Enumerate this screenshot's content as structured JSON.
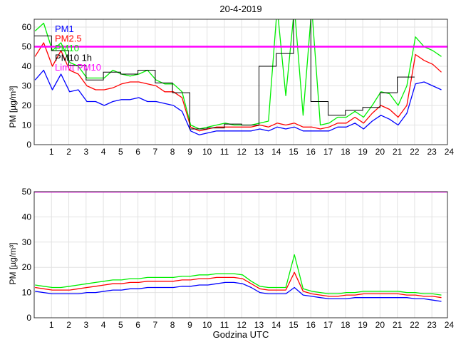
{
  "chart_data": [
    {
      "type": "line",
      "title": "20-4-2019",
      "xlabel": "",
      "ylabel": "PM [µg/m³]",
      "xlim": [
        0,
        23.9
      ],
      "ylim": [
        0,
        64
      ],
      "xticks": [
        1,
        2,
        3,
        4,
        5,
        6,
        7,
        8,
        9,
        10,
        11,
        12,
        13,
        14,
        15,
        16,
        17,
        18,
        19,
        20,
        21,
        22,
        23,
        24
      ],
      "yticks": [
        0,
        10,
        20,
        30,
        40,
        50,
        60
      ],
      "grid": true,
      "legend_placement": "top-left",
      "x_step_hours": 0.5,
      "series": [
        {
          "name": "PM1",
          "color": "#0000ff",
          "values": [
            33,
            38,
            28,
            36,
            27,
            28,
            22,
            22,
            20,
            22,
            23,
            23,
            24,
            22,
            22,
            21,
            20,
            17,
            7,
            5,
            6,
            7,
            7,
            7,
            7,
            7,
            8,
            7,
            9,
            8,
            9,
            7,
            7,
            7,
            7,
            9,
            9,
            11,
            8,
            12,
            15,
            13,
            10,
            16,
            31,
            32,
            30,
            28
          ]
        },
        {
          "name": "PM2.5",
          "color": "#ff0000",
          "values": [
            45,
            52,
            40,
            48,
            38,
            36,
            30,
            28,
            28,
            29,
            31,
            32,
            32,
            31,
            30,
            27,
            27,
            24,
            9,
            7,
            8,
            9,
            9,
            9,
            9,
            9,
            10,
            9,
            11,
            10,
            11,
            9,
            9,
            8,
            9,
            11,
            11,
            14,
            11,
            16,
            20,
            18,
            14,
            20,
            46,
            43,
            41,
            37
          ]
        },
        {
          "name": "PM10",
          "color": "#00ee00",
          "values": [
            58,
            62,
            48,
            52,
            42,
            40,
            34,
            34,
            34,
            38,
            36,
            35,
            36,
            38,
            33,
            31,
            31,
            27,
            10,
            8,
            9,
            10,
            11,
            10,
            10,
            10,
            11,
            12,
            70,
            25,
            70,
            15,
            70,
            10,
            11,
            14,
            14,
            17,
            14,
            20,
            27,
            26,
            20,
            30,
            55,
            50,
            48,
            45
          ]
        },
        {
          "name": "PM10 1h",
          "color": "#000000",
          "step": true,
          "values": [
            55.5,
            48,
            40.5,
            33,
            37,
            36,
            38,
            31.5,
            26.5,
            8,
            8.5,
            10.5,
            10,
            40,
            46.5,
            80,
            22,
            15,
            17.5,
            19,
            26.5,
            34.5
          ]
        },
        {
          "name": "Limit PM10",
          "color": "#ff00ff",
          "constant": 50
        }
      ]
    },
    {
      "type": "line",
      "title": "",
      "xlabel": "Godzina UTC",
      "ylabel": "PM [µg/m³]",
      "xlim": [
        0,
        23.9
      ],
      "ylim": [
        0,
        50
      ],
      "xticks": [
        1,
        2,
        3,
        4,
        5,
        6,
        7,
        8,
        9,
        10,
        11,
        12,
        13,
        14,
        15,
        16,
        17,
        18,
        19,
        20,
        21,
        22,
        23,
        24
      ],
      "yticks": [
        0,
        10,
        20,
        30,
        40,
        50
      ],
      "grid": true,
      "x_step_hours": 0.5,
      "series": [
        {
          "name": "PM1",
          "color": "#0000ff",
          "values": [
            10.5,
            10,
            9.5,
            9.5,
            9.5,
            9.5,
            10,
            10,
            10.5,
            11,
            11,
            11.5,
            11.5,
            12,
            12,
            12,
            12,
            12.5,
            12.5,
            13,
            13,
            13.5,
            14,
            14,
            13.5,
            12,
            10,
            9.5,
            9.5,
            9.5,
            12,
            9,
            8.5,
            8,
            7.5,
            7.5,
            7.5,
            8,
            8,
            8,
            8,
            8,
            8,
            8,
            7.5,
            7.5,
            7,
            6.5
          ]
        },
        {
          "name": "PM2.5",
          "color": "#ff0000",
          "values": [
            12,
            11.5,
            11,
            11,
            11,
            11.5,
            12,
            12.5,
            13,
            13.5,
            13.5,
            14,
            14,
            14.5,
            14.5,
            14.5,
            14.5,
            15,
            15,
            15.5,
            15.5,
            16,
            16,
            16,
            15.5,
            13.5,
            11.5,
            11,
            11,
            11,
            18,
            10.5,
            9.5,
            9,
            8.5,
            8.5,
            9,
            9,
            9.5,
            9.5,
            9.5,
            9.5,
            9.5,
            9,
            9,
            8.5,
            8.5,
            8
          ]
        },
        {
          "name": "PM10",
          "color": "#00ee00",
          "values": [
            13,
            12.5,
            12,
            12,
            12.5,
            13,
            13.5,
            14,
            14.5,
            15,
            15,
            15.5,
            15.5,
            16,
            16,
            16,
            16,
            16.5,
            16.5,
            17,
            17,
            17.5,
            17.5,
            17.5,
            17,
            14.5,
            12.5,
            12,
            12,
            12,
            25,
            11.5,
            10.5,
            10,
            9.5,
            9.5,
            10,
            10,
            10.5,
            10.5,
            10.5,
            10.5,
            10.5,
            10,
            10,
            9.5,
            9.5,
            9
          ]
        },
        {
          "name": "Limit PM10",
          "color": "#ff00ff",
          "constant": 50
        }
      ]
    }
  ]
}
